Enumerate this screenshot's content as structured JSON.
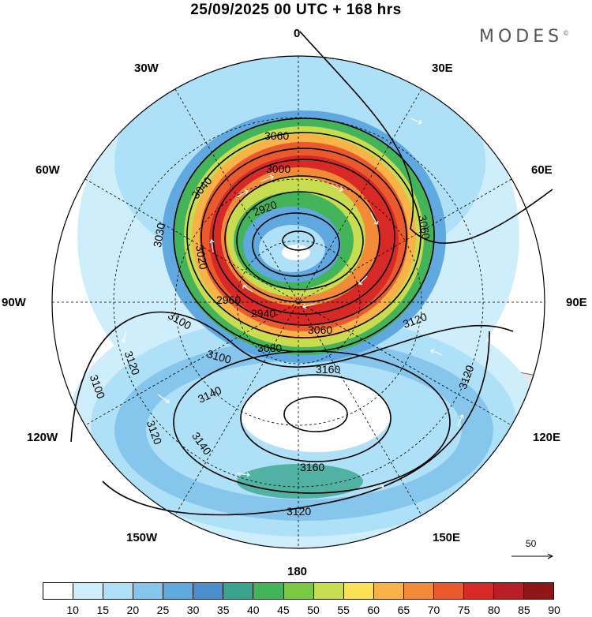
{
  "title": "25/09/2025  00 UTC  + 168 hrs",
  "brand": "MODES",
  "brand_mark": "©",
  "longitude_labels": {
    "top": "0",
    "top_left": "30W",
    "top_right": "30E",
    "upper_left": "60W",
    "upper_right": "60E",
    "left": "90W",
    "right": "90E",
    "lower_left": "120W",
    "lower_right": "120E",
    "bottom_left": "150W",
    "bottom_right": "150E",
    "bottom": "180"
  },
  "contour_labels": [
    "3060",
    "3000",
    "3040",
    "2920",
    "3030",
    "3060",
    "3020",
    "2960",
    "2940",
    "3080",
    "3060",
    "3100",
    "3100",
    "3120",
    "3120",
    "3160",
    "3140",
    "3100",
    "3120",
    "3140",
    "3120",
    "3160",
    "3120"
  ],
  "wind_scale": {
    "label": "50"
  },
  "colorbar": {
    "labels": [
      "10",
      "15",
      "20",
      "25",
      "30",
      "35",
      "40",
      "45",
      "50",
      "55",
      "60",
      "65",
      "70",
      "75",
      "80",
      "85",
      "90"
    ],
    "colors": [
      "#ffffff",
      "#cfeefb",
      "#aee0f7",
      "#86c6ec",
      "#5fa8e0",
      "#4a8fcb",
      "#3aa58c",
      "#43b45a",
      "#7ac943",
      "#c7dc4f",
      "#fbe156",
      "#f8b247",
      "#f28a38",
      "#eb5a2c",
      "#d72a26",
      "#b71e26",
      "#8e1616"
    ]
  }
}
